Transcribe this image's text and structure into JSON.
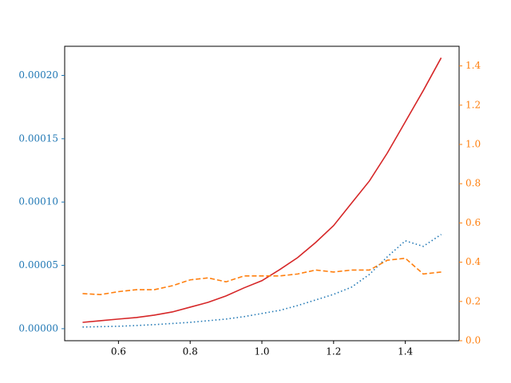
{
  "chart_data": {
    "type": "line",
    "x": [
      0.5,
      0.55,
      0.6,
      0.65,
      0.7,
      0.75,
      0.8,
      0.85,
      0.9,
      0.95,
      1.0,
      1.05,
      1.1,
      1.15,
      1.2,
      1.25,
      1.3,
      1.35,
      1.4,
      1.45,
      1.5
    ],
    "series": [
      {
        "color": "#d62728",
        "linestyle": "solid",
        "axis": "y",
        "values": [
          5e-06,
          6.3e-06,
          7.6e-06,
          8.8e-06,
          1.07e-05,
          1.32e-05,
          1.7e-05,
          2.08e-05,
          2.59e-05,
          3.22e-05,
          3.79e-05,
          4.67e-05,
          5.62e-05,
          6.81e-05,
          8.14e-05,
          9.91e-05,
          0.0001167,
          0.0001388,
          0.0001634,
          0.000188,
          0.0002139
        ]
      },
      {
        "color": "#1f77b4",
        "linestyle": "dotted",
        "axis": "y",
        "values": [
          1.3e-06,
          1.6e-06,
          1.9e-06,
          2.5e-06,
          3.2e-06,
          4.1e-06,
          5e-06,
          6.3e-06,
          7.6e-06,
          9.5e-06,
          1.2e-05,
          1.45e-05,
          1.83e-05,
          2.27e-05,
          2.71e-05,
          3.28e-05,
          4.29e-05,
          5.68e-05,
          6.94e-05,
          6.5e-05,
          7.44e-05
        ]
      },
      {
        "color": "#ff7f0e",
        "linestyle": "dashed",
        "axis": "y2",
        "values": [
          0.24,
          0.235,
          0.25,
          0.26,
          0.26,
          0.28,
          0.31,
          0.32,
          0.3,
          0.33,
          0.33,
          0.33,
          0.34,
          0.36,
          0.35,
          0.36,
          0.36,
          0.41,
          0.42,
          0.34,
          0.35
        ]
      }
    ],
    "xlim": [
      0.45,
      1.55
    ],
    "xticks": [
      0.6,
      0.8,
      {
        "value": 1.0,
        "label": "1.0"
      },
      1.2,
      1.4
    ],
    "ylim": [
      -9.5e-06,
      0.000223
    ],
    "yticks": [
      {
        "value": 0,
        "label": "0.00000"
      },
      {
        "value": 5e-05,
        "label": "0.00005"
      },
      {
        "value": 0.0001,
        "label": "0.00010"
      },
      {
        "value": 0.00015,
        "label": "0.00015"
      },
      {
        "value": 0.0002,
        "label": "0.00020"
      }
    ],
    "y2lim": [
      0,
      1.5
    ],
    "y2ticks": [
      {
        "value": 0,
        "label": "0.0"
      },
      0.2,
      0.4,
      0.6,
      0.8,
      {
        "value": 1.0,
        "label": "1.0"
      },
      1.2,
      1.4
    ],
    "yaxis_color": "#1f77b4",
    "y2axis_color": "#ff7f0e",
    "grid": false
  }
}
